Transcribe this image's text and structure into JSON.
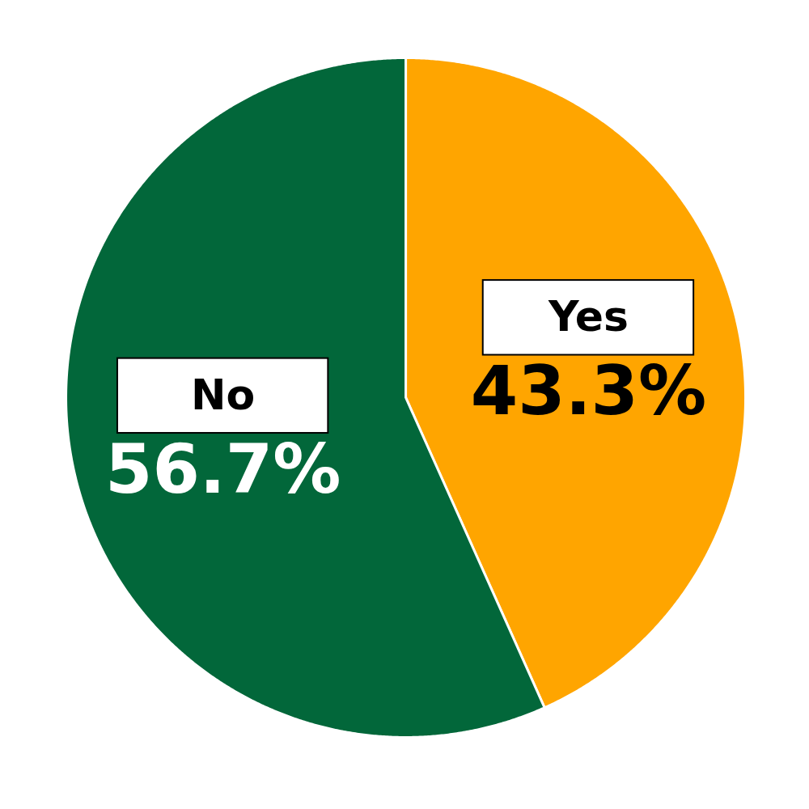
{
  "chart_data": {
    "type": "pie",
    "categories": [
      "Yes",
      "No"
    ],
    "values": [
      43.3,
      56.7
    ],
    "value_labels": [
      "43.3%",
      "56.7%"
    ],
    "colors": [
      "#FFA500",
      "#02673A"
    ],
    "data_labels": true
  }
}
